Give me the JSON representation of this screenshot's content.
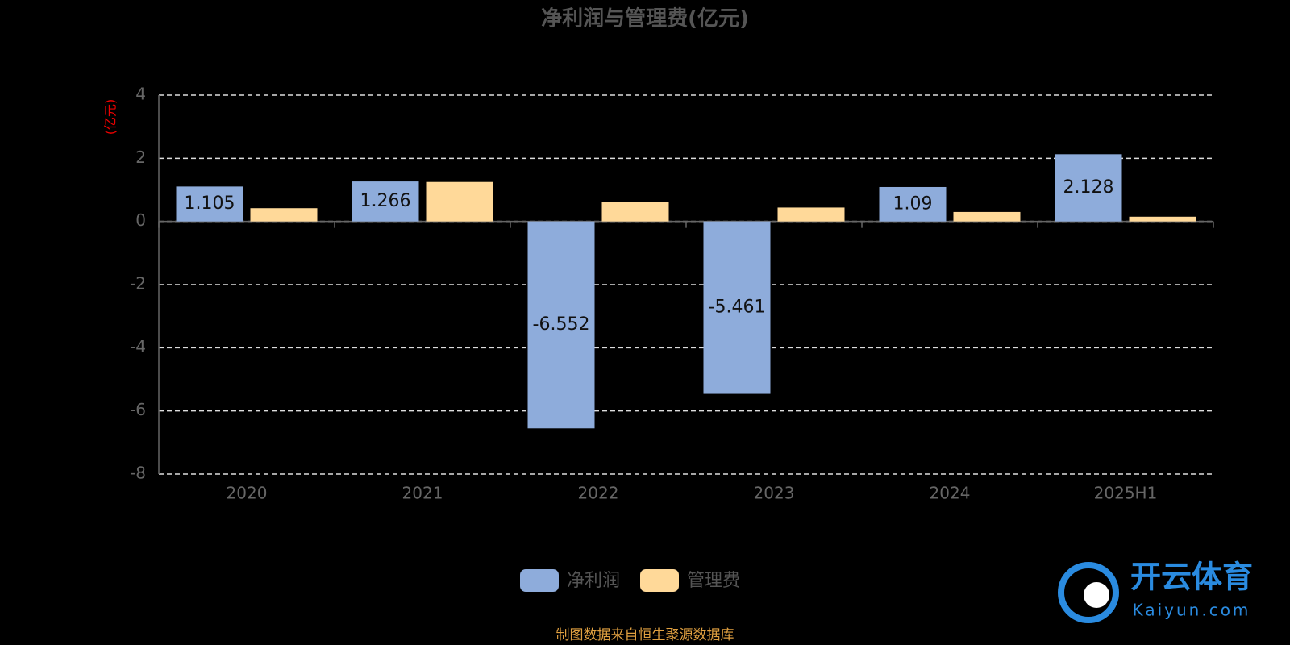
{
  "chart_data": {
    "type": "bar",
    "title": "净利润与管理费(亿元)",
    "y_axis_label": "(亿元)",
    "categories": [
      "2020",
      "2021",
      "2022",
      "2023",
      "2024",
      "2025H1"
    ],
    "series": [
      {
        "name": "净利润",
        "color": "#8eacdb",
        "labels": true,
        "values": [
          1.105,
          1.266,
          -6.552,
          -5.461,
          1.09,
          2.128
        ]
      },
      {
        "name": "管理费",
        "color": "#ffd999",
        "labels": false,
        "values": [
          0.42,
          1.25,
          0.62,
          0.44,
          0.3,
          0.15
        ]
      }
    ],
    "ylim": [
      -8,
      4
    ],
    "yticks": [
      -8,
      -6,
      -4,
      -2,
      0,
      2,
      4
    ],
    "grid": true,
    "legend": "bottom",
    "source": "制图数据来自恒生聚源数据库",
    "watermark": {
      "name": "开云体育",
      "url": "Kaiyun.com"
    }
  }
}
